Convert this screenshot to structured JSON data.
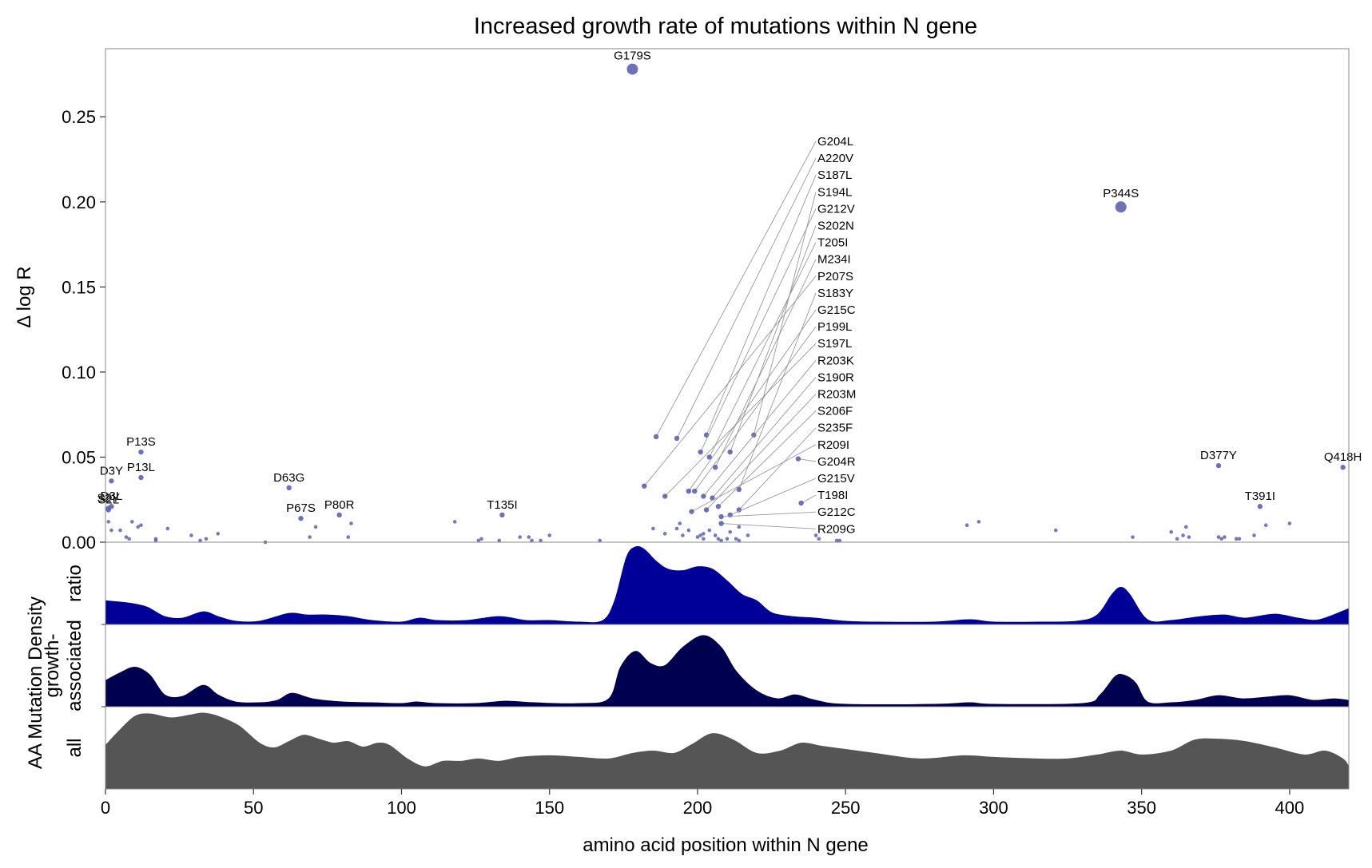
{
  "chart_data": {
    "type": "scatter",
    "title": "Increased growth rate of mutations within N gene",
    "xlabel": "amino acid position within N gene",
    "ylabel": "Δ log R",
    "density_label": "AA Mutation Density",
    "xlim": [
      0,
      420
    ],
    "ylim": [
      0,
      0.29
    ],
    "xticks": [
      "0",
      "50",
      "100",
      "150",
      "200",
      "250",
      "300",
      "350",
      "400"
    ],
    "yticks": [
      "0.00",
      "0.05",
      "0.10",
      "0.15",
      "0.20",
      "0.25"
    ],
    "point_color": "#5c63b0",
    "labeled_points": [
      {
        "name": "G179S",
        "x": 178,
        "y": 0.278,
        "big": true
      },
      {
        "name": "P344S",
        "x": 343,
        "y": 0.197,
        "big": true
      },
      {
        "name": "P13S",
        "x": 12,
        "y": 0.053
      },
      {
        "name": "P13L",
        "x": 12,
        "y": 0.038
      },
      {
        "name": "D3Y",
        "x": 2,
        "y": 0.036
      },
      {
        "name": "D3L",
        "x": 2,
        "y": 0.021
      },
      {
        "name": "S2Y",
        "x": 1,
        "y": 0.02
      },
      {
        "name": "S2L",
        "x": 1,
        "y": 0.019
      },
      {
        "name": "D63G",
        "x": 62,
        "y": 0.032
      },
      {
        "name": "P67S",
        "x": 66,
        "y": 0.014
      },
      {
        "name": "P80R",
        "x": 79,
        "y": 0.016
      },
      {
        "name": "T135I",
        "x": 134,
        "y": 0.016
      },
      {
        "name": "D377Y",
        "x": 376,
        "y": 0.045
      },
      {
        "name": "Q418H",
        "x": 418,
        "y": 0.044
      },
      {
        "name": "T391I",
        "x": 390,
        "y": 0.021
      }
    ],
    "callout_points": [
      {
        "name": "G204L",
        "x": 186,
        "y": 0.062
      },
      {
        "name": "A220V",
        "x": 193,
        "y": 0.061
      },
      {
        "name": "S187L",
        "x": 203,
        "y": 0.063
      },
      {
        "name": "S194L",
        "x": 219,
        "y": 0.063
      },
      {
        "name": "G212V",
        "x": 201,
        "y": 0.053
      },
      {
        "name": "S202N",
        "x": 211,
        "y": 0.053
      },
      {
        "name": "T205I",
        "x": 204,
        "y": 0.05
      },
      {
        "name": "M234I",
        "x": 206,
        "y": 0.044
      },
      {
        "name": "P207S",
        "x": 182,
        "y": 0.033
      },
      {
        "name": "S183Y",
        "x": 214,
        "y": 0.031
      },
      {
        "name": "G215C",
        "x": 197,
        "y": 0.03
      },
      {
        "name": "P199L",
        "x": 199,
        "y": 0.03
      },
      {
        "name": "S197L",
        "x": 189,
        "y": 0.027
      },
      {
        "name": "R203K",
        "x": 202,
        "y": 0.027
      },
      {
        "name": "S190R",
        "x": 205,
        "y": 0.026
      },
      {
        "name": "R203M",
        "x": 203,
        "y": 0.019
      },
      {
        "name": "S206F",
        "x": 207,
        "y": 0.021
      },
      {
        "name": "S235F",
        "x": 214,
        "y": 0.019
      },
      {
        "name": "R209I",
        "x": 198,
        "y": 0.018
      },
      {
        "name": "G204R",
        "x": 234,
        "y": 0.049
      },
      {
        "name": "G215V",
        "x": 211,
        "y": 0.016
      },
      {
        "name": "T198I",
        "x": 235,
        "y": 0.023
      },
      {
        "name": "G212C",
        "x": 208,
        "y": 0.015
      },
      {
        "name": "R209G",
        "x": 208,
        "y": 0.011
      }
    ],
    "small_points": [
      [
        1,
        0.012
      ],
      [
        2,
        0.007
      ],
      [
        5,
        0.007
      ],
      [
        7,
        0.003
      ],
      [
        8,
        0.002
      ],
      [
        9,
        0.012
      ],
      [
        11,
        0.009
      ],
      [
        12,
        0.01
      ],
      [
        17,
        0.002
      ],
      [
        17,
        0.001
      ],
      [
        21,
        0.008
      ],
      [
        29,
        0.004
      ],
      [
        32,
        0.001
      ],
      [
        34,
        0.002
      ],
      [
        38,
        0.005
      ],
      [
        54,
        0.0
      ],
      [
        69,
        0.003
      ],
      [
        71,
        0.009
      ],
      [
        82,
        0.003
      ],
      [
        83,
        0.011
      ],
      [
        118,
        0.012
      ],
      [
        126,
        0.001
      ],
      [
        127,
        0.002
      ],
      [
        133,
        0.001
      ],
      [
        140,
        0.003
      ],
      [
        143,
        0.003
      ],
      [
        144,
        0.001
      ],
      [
        147,
        0.001
      ],
      [
        150,
        0.004
      ],
      [
        167,
        0.001
      ],
      [
        185,
        0.008
      ],
      [
        189,
        0.005
      ],
      [
        193,
        0.008
      ],
      [
        194,
        0.011
      ],
      [
        195,
        0.004
      ],
      [
        197,
        0.007
      ],
      [
        200,
        0.003
      ],
      [
        201,
        0.004
      ],
      [
        202,
        0.005
      ],
      [
        202,
        0.002
      ],
      [
        204,
        0.007
      ],
      [
        206,
        0.004
      ],
      [
        207,
        0.002
      ],
      [
        208,
        0.001
      ],
      [
        210,
        0.002
      ],
      [
        211,
        0.006
      ],
      [
        213,
        0.002
      ],
      [
        214,
        0.009
      ],
      [
        214,
        0.001
      ],
      [
        217,
        0.004
      ],
      [
        240,
        0.004
      ],
      [
        241,
        0.002
      ],
      [
        247,
        0.001
      ],
      [
        248,
        0.001
      ],
      [
        291,
        0.01
      ],
      [
        295,
        0.012
      ],
      [
        321,
        0.007
      ],
      [
        347,
        0.003
      ],
      [
        360,
        0.006
      ],
      [
        362,
        0.002
      ],
      [
        364,
        0.004
      ],
      [
        365,
        0.009
      ],
      [
        366,
        0.003
      ],
      [
        376,
        0.003
      ],
      [
        377,
        0.002
      ],
      [
        378,
        0.003
      ],
      [
        382,
        0.002
      ],
      [
        383,
        0.002
      ],
      [
        388,
        0.004
      ],
      [
        392,
        0.01
      ],
      [
        400,
        0.011
      ]
    ],
    "density_panels": [
      {
        "label": [
          "ratio"
        ],
        "color": "#000099",
        "curve": [
          [
            0,
            0.3
          ],
          [
            8,
            0.27
          ],
          [
            14,
            0.22
          ],
          [
            20,
            0.1
          ],
          [
            26,
            0.08
          ],
          [
            33,
            0.16
          ],
          [
            38,
            0.1
          ],
          [
            44,
            0.04
          ],
          [
            52,
            0.04
          ],
          [
            62,
            0.14
          ],
          [
            68,
            0.12
          ],
          [
            75,
            0.12
          ],
          [
            82,
            0.1
          ],
          [
            90,
            0.05
          ],
          [
            100,
            0.03
          ],
          [
            106,
            0.08
          ],
          [
            112,
            0.05
          ],
          [
            122,
            0.05
          ],
          [
            133,
            0.1
          ],
          [
            142,
            0.05
          ],
          [
            150,
            0.05
          ],
          [
            160,
            0.03
          ],
          [
            168,
            0.05
          ],
          [
            172,
            0.3
          ],
          [
            176,
            0.85
          ],
          [
            179,
            0.98
          ],
          [
            182,
            0.95
          ],
          [
            186,
            0.8
          ],
          [
            190,
            0.7
          ],
          [
            195,
            0.68
          ],
          [
            200,
            0.73
          ],
          [
            205,
            0.7
          ],
          [
            210,
            0.55
          ],
          [
            215,
            0.38
          ],
          [
            220,
            0.3
          ],
          [
            225,
            0.15
          ],
          [
            232,
            0.1
          ],
          [
            240,
            0.08
          ],
          [
            250,
            0.04
          ],
          [
            260,
            0.03
          ],
          [
            280,
            0.03
          ],
          [
            292,
            0.06
          ],
          [
            300,
            0.03
          ],
          [
            315,
            0.03
          ],
          [
            328,
            0.04
          ],
          [
            335,
            0.12
          ],
          [
            340,
            0.38
          ],
          [
            343,
            0.47
          ],
          [
            346,
            0.38
          ],
          [
            352,
            0.06
          ],
          [
            360,
            0.05
          ],
          [
            370,
            0.1
          ],
          [
            378,
            0.12
          ],
          [
            385,
            0.08
          ],
          [
            395,
            0.13
          ],
          [
            403,
            0.08
          ],
          [
            410,
            0.06
          ],
          [
            420,
            0.2
          ]
        ]
      },
      {
        "label": [
          "growth-",
          "associated"
        ],
        "color": "#000050",
        "curve": [
          [
            0,
            0.33
          ],
          [
            5,
            0.43
          ],
          [
            10,
            0.5
          ],
          [
            15,
            0.4
          ],
          [
            20,
            0.15
          ],
          [
            26,
            0.13
          ],
          [
            33,
            0.27
          ],
          [
            38,
            0.15
          ],
          [
            44,
            0.06
          ],
          [
            52,
            0.05
          ],
          [
            58,
            0.08
          ],
          [
            63,
            0.17
          ],
          [
            70,
            0.1
          ],
          [
            80,
            0.06
          ],
          [
            90,
            0.05
          ],
          [
            100,
            0.04
          ],
          [
            105,
            0.06
          ],
          [
            112,
            0.04
          ],
          [
            125,
            0.04
          ],
          [
            135,
            0.07
          ],
          [
            145,
            0.05
          ],
          [
            160,
            0.04
          ],
          [
            170,
            0.1
          ],
          [
            174,
            0.5
          ],
          [
            179,
            0.7
          ],
          [
            184,
            0.55
          ],
          [
            189,
            0.52
          ],
          [
            195,
            0.75
          ],
          [
            202,
            0.9
          ],
          [
            208,
            0.75
          ],
          [
            213,
            0.45
          ],
          [
            220,
            0.2
          ],
          [
            227,
            0.1
          ],
          [
            233,
            0.15
          ],
          [
            240,
            0.08
          ],
          [
            250,
            0.03
          ],
          [
            280,
            0.03
          ],
          [
            292,
            0.05
          ],
          [
            300,
            0.03
          ],
          [
            330,
            0.04
          ],
          [
            336,
            0.15
          ],
          [
            341,
            0.38
          ],
          [
            344,
            0.4
          ],
          [
            348,
            0.3
          ],
          [
            352,
            0.06
          ],
          [
            360,
            0.05
          ],
          [
            368,
            0.08
          ],
          [
            376,
            0.14
          ],
          [
            384,
            0.1
          ],
          [
            392,
            0.12
          ],
          [
            400,
            0.14
          ],
          [
            408,
            0.08
          ],
          [
            415,
            0.1
          ],
          [
            420,
            0.08
          ]
        ]
      },
      {
        "label": [
          "all"
        ],
        "color": "#555555",
        "curve": [
          [
            0,
            0.55
          ],
          [
            5,
            0.75
          ],
          [
            10,
            0.92
          ],
          [
            15,
            0.95
          ],
          [
            22,
            0.9
          ],
          [
            28,
            0.93
          ],
          [
            33,
            0.96
          ],
          [
            38,
            0.92
          ],
          [
            45,
            0.8
          ],
          [
            52,
            0.58
          ],
          [
            57,
            0.52
          ],
          [
            62,
            0.6
          ],
          [
            67,
            0.68
          ],
          [
            72,
            0.63
          ],
          [
            77,
            0.58
          ],
          [
            82,
            0.6
          ],
          [
            87,
            0.53
          ],
          [
            92,
            0.58
          ],
          [
            96,
            0.55
          ],
          [
            102,
            0.38
          ],
          [
            108,
            0.28
          ],
          [
            114,
            0.35
          ],
          [
            120,
            0.35
          ],
          [
            126,
            0.38
          ],
          [
            133,
            0.35
          ],
          [
            140,
            0.4
          ],
          [
            150,
            0.42
          ],
          [
            160,
            0.4
          ],
          [
            170,
            0.38
          ],
          [
            178,
            0.45
          ],
          [
            185,
            0.48
          ],
          [
            192,
            0.45
          ],
          [
            198,
            0.56
          ],
          [
            205,
            0.7
          ],
          [
            212,
            0.62
          ],
          [
            220,
            0.45
          ],
          [
            228,
            0.48
          ],
          [
            235,
            0.58
          ],
          [
            242,
            0.54
          ],
          [
            250,
            0.5
          ],
          [
            260,
            0.45
          ],
          [
            275,
            0.38
          ],
          [
            290,
            0.42
          ],
          [
            300,
            0.4
          ],
          [
            315,
            0.38
          ],
          [
            325,
            0.38
          ],
          [
            335,
            0.43
          ],
          [
            343,
            0.48
          ],
          [
            350,
            0.43
          ],
          [
            360,
            0.48
          ],
          [
            368,
            0.62
          ],
          [
            376,
            0.63
          ],
          [
            385,
            0.6
          ],
          [
            395,
            0.52
          ],
          [
            405,
            0.43
          ],
          [
            412,
            0.48
          ],
          [
            418,
            0.38
          ],
          [
            420,
            0.28
          ]
        ]
      }
    ]
  }
}
